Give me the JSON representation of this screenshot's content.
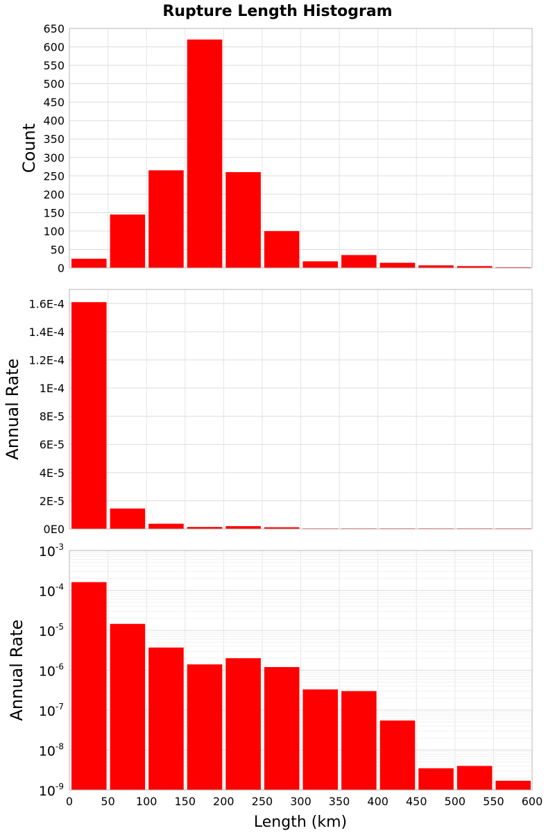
{
  "chart_data": {
    "type": "bar",
    "title": "Rupture Length Histogram",
    "xlabel": "Length (km)",
    "xlim": [
      0,
      600
    ],
    "x_ticks": [
      "0",
      "50",
      "100",
      "150",
      "200",
      "250",
      "300",
      "350",
      "400",
      "450",
      "500",
      "550",
      "600"
    ],
    "bin_width": 50,
    "bin_centers": [
      25,
      75,
      125,
      175,
      225,
      275,
      325,
      375,
      425,
      475,
      525,
      575
    ],
    "panels": [
      {
        "id": "count",
        "ylabel": "Count",
        "scale": "linear",
        "ylim": [
          0,
          650
        ],
        "y_ticks": [
          {
            "value": 0,
            "label": "0"
          },
          {
            "value": 50,
            "label": "50"
          },
          {
            "value": 100,
            "label": "100"
          },
          {
            "value": 150,
            "label": "150"
          },
          {
            "value": 200,
            "label": "200"
          },
          {
            "value": 250,
            "label": "250"
          },
          {
            "value": 300,
            "label": "300"
          },
          {
            "value": 350,
            "label": "350"
          },
          {
            "value": 400,
            "label": "400"
          },
          {
            "value": 450,
            "label": "450"
          },
          {
            "value": 500,
            "label": "500"
          },
          {
            "value": 550,
            "label": "550"
          },
          {
            "value": 600,
            "label": "600"
          },
          {
            "value": 650,
            "label": "650"
          }
        ],
        "values": [
          25,
          145,
          265,
          620,
          260,
          100,
          18,
          35,
          14,
          7,
          5,
          2
        ],
        "color": "#ff0000"
      },
      {
        "id": "rate-linear",
        "ylabel": "Annual Rate",
        "scale": "linear",
        "ylim": [
          0,
          0.00017
        ],
        "y_ticks": [
          {
            "value": 0,
            "label": "0E0"
          },
          {
            "value": 2e-05,
            "label": "2E-5"
          },
          {
            "value": 4e-05,
            "label": "4E-5"
          },
          {
            "value": 6e-05,
            "label": "6E-5"
          },
          {
            "value": 8e-05,
            "label": "8E-5"
          },
          {
            "value": 0.0001,
            "label": "1E-4"
          },
          {
            "value": 0.00012,
            "label": "1.2E-4"
          },
          {
            "value": 0.00014,
            "label": "1.4E-4"
          },
          {
            "value": 0.00016,
            "label": "1.6E-4"
          }
        ],
        "values": [
          0.000161,
          1.45e-05,
          3.7e-06,
          1.4e-06,
          2e-06,
          1.2e-06,
          3.3e-07,
          3e-07,
          5.5e-08,
          3.5e-09,
          4e-09,
          1.7e-09
        ],
        "color": "#ff0000"
      },
      {
        "id": "rate-log",
        "ylabel": "Annual Rate",
        "scale": "log",
        "ylim": [
          1e-09,
          0.001
        ],
        "y_ticks": [
          {
            "value": 1e-09,
            "base": "10",
            "exp": "-9"
          },
          {
            "value": 1e-08,
            "base": "10",
            "exp": "-8"
          },
          {
            "value": 1e-07,
            "base": "10",
            "exp": "-7"
          },
          {
            "value": 1e-06,
            "base": "10",
            "exp": "-6"
          },
          {
            "value": 1e-05,
            "base": "10",
            "exp": "-5"
          },
          {
            "value": 0.0001,
            "base": "10",
            "exp": "-4"
          },
          {
            "value": 0.001,
            "base": "10",
            "exp": "-3"
          }
        ],
        "values": [
          0.000161,
          1.45e-05,
          3.7e-06,
          1.4e-06,
          2e-06,
          1.2e-06,
          3.3e-07,
          3e-07,
          5.5e-08,
          3.5e-09,
          4e-09,
          1.7e-09
        ],
        "color": "#ff0000"
      }
    ]
  }
}
